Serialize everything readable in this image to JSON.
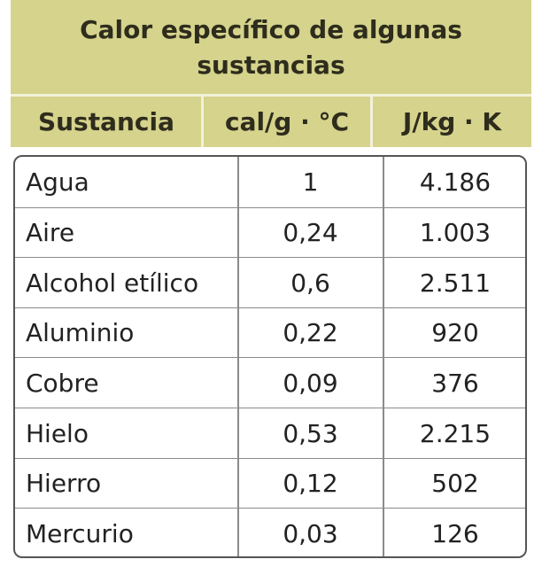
{
  "table": {
    "title": "Calor específico de algunas sustancias",
    "headers": [
      "Sustancia",
      "cal/g · °C",
      "J/kg · K"
    ],
    "rows": [
      [
        "Agua",
        "1",
        "4.186"
      ],
      [
        "Aire",
        "0,24",
        "1.003"
      ],
      [
        "Alcohol etílico",
        "0,6",
        "2.511"
      ],
      [
        "Aluminio",
        "0,22",
        "920"
      ],
      [
        "Cobre",
        "0,09",
        "376"
      ],
      [
        "Hielo",
        "0,53",
        "2.215"
      ],
      [
        "Hierro",
        "0,12",
        "502"
      ],
      [
        "Mercurio",
        "0,03",
        "126"
      ]
    ]
  }
}
